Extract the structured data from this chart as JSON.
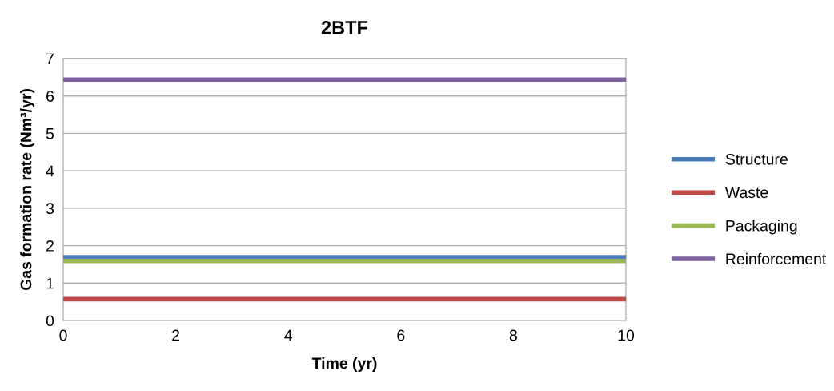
{
  "chart_data": {
    "type": "line",
    "title": "2BTF",
    "xlabel": "Time (yr)",
    "ylabel": "Gas formation rate (Nm³/yr)",
    "x": [
      0,
      10
    ],
    "series": [
      {
        "name": "Structure",
        "color": "#4a7ebb",
        "values": [
          1.69,
          1.69
        ]
      },
      {
        "name": "Waste",
        "color": "#be4b48",
        "values": [
          0.57,
          0.57
        ]
      },
      {
        "name": "Packaging",
        "color": "#98b954",
        "values": [
          1.59,
          1.59
        ]
      },
      {
        "name": "Reinforcement",
        "color": "#7d60a0",
        "values": [
          6.44,
          6.44
        ]
      }
    ],
    "xlim": [
      0,
      10
    ],
    "xticks": [
      0,
      2,
      4,
      6,
      8,
      10
    ],
    "ylim": [
      0,
      7
    ],
    "yticks": [
      0,
      1,
      2,
      3,
      4,
      5,
      6,
      7
    ],
    "grid": "y",
    "legend": "right",
    "marker": "none",
    "line_style": "solid"
  }
}
